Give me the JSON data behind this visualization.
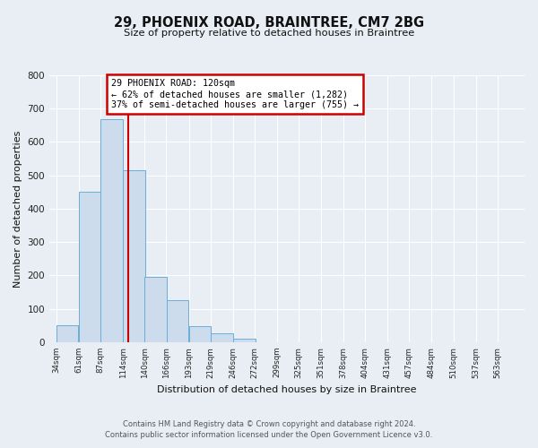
{
  "title": "29, PHOENIX ROAD, BRAINTREE, CM7 2BG",
  "subtitle": "Size of property relative to detached houses in Braintree",
  "xlabel": "Distribution of detached houses by size in Braintree",
  "ylabel": "Number of detached properties",
  "bar_edges": [
    34,
    61,
    87,
    114,
    140,
    166,
    193,
    219,
    246,
    272,
    299,
    325,
    351,
    378,
    404,
    431,
    457,
    484,
    510,
    537,
    563
  ],
  "bar_values": [
    50,
    450,
    668,
    515,
    197,
    127,
    49,
    27,
    10,
    0,
    0,
    0,
    0,
    0,
    0,
    0,
    0,
    0,
    0,
    0
  ],
  "property_line_x": 120,
  "bar_color": "#ccdcec",
  "bar_edge_color": "#6aaed6",
  "line_color": "#cc0000",
  "ylim": [
    0,
    800
  ],
  "yticks": [
    0,
    100,
    200,
    300,
    400,
    500,
    600,
    700,
    800
  ],
  "annotation_title": "29 PHOENIX ROAD: 120sqm",
  "annotation_line1": "← 62% of detached houses are smaller (1,282)",
  "annotation_line2": "37% of semi-detached houses are larger (755) →",
  "annotation_box_color": "#ffffff",
  "annotation_border_color": "#cc0000",
  "footer_line1": "Contains HM Land Registry data © Crown copyright and database right 2024.",
  "footer_line2": "Contains public sector information licensed under the Open Government Licence v3.0.",
  "background_color": "#e8eef4",
  "plot_background": "#e8eef4",
  "grid_color": "#ffffff",
  "tick_label_color": "#222222",
  "title_color": "#111111"
}
